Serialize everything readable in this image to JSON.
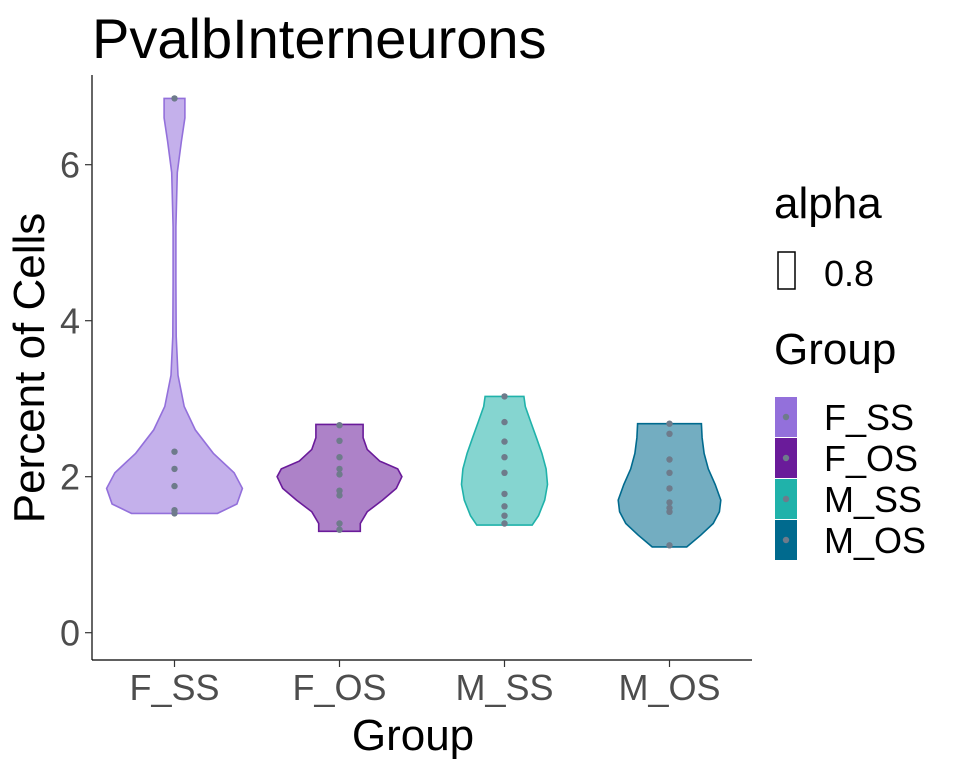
{
  "chart_data": {
    "type": "violin",
    "title": "PvalbInterneurons",
    "xlabel": "Group",
    "ylabel": "Percent of Cells",
    "categories": [
      "F_SS",
      "F_OS",
      "M_SS",
      "M_OS"
    ],
    "ylim": [
      -0.35,
      7.15
    ],
    "yticks": [
      0,
      2,
      4,
      6
    ],
    "grid": false,
    "legend_position": "right",
    "colors": {
      "F_SS": "#9370DB",
      "F_OS": "#6A1B9A",
      "M_SS": "#20B2AA",
      "M_OS": "#006A8E",
      "point": "#6E7B8B"
    },
    "series": [
      {
        "name": "F_SS",
        "points": [
          6.85,
          2.32,
          2.1,
          1.88,
          1.57,
          1.53
        ]
      },
      {
        "name": "F_OS",
        "points": [
          2.66,
          2.46,
          2.25,
          2.1,
          2.03,
          1.82,
          1.76,
          1.4,
          1.32
        ]
      },
      {
        "name": "M_SS",
        "points": [
          3.03,
          2.7,
          2.45,
          2.25,
          2.05,
          1.78,
          1.62,
          1.5,
          1.4
        ]
      },
      {
        "name": "M_OS",
        "points": [
          2.68,
          2.55,
          2.22,
          2.05,
          1.85,
          1.67,
          1.6,
          1.55,
          1.12
        ]
      }
    ],
    "violins": [
      {
        "name": "F_SS",
        "min": 1.53,
        "max": 6.85,
        "profile": [
          [
            1.53,
            0.62
          ],
          [
            1.65,
            0.9
          ],
          [
            1.85,
            0.98
          ],
          [
            2.05,
            0.86
          ],
          [
            2.3,
            0.56
          ],
          [
            2.6,
            0.3
          ],
          [
            2.9,
            0.14
          ],
          [
            3.3,
            0.05
          ],
          [
            3.8,
            0.025
          ],
          [
            4.5,
            0.02
          ],
          [
            5.2,
            0.02
          ],
          [
            5.9,
            0.04
          ],
          [
            6.3,
            0.1
          ],
          [
            6.6,
            0.15
          ],
          [
            6.85,
            0.15
          ]
        ]
      },
      {
        "name": "F_OS",
        "min": 1.3,
        "max": 2.67,
        "profile": [
          [
            1.3,
            0.3
          ],
          [
            1.4,
            0.3
          ],
          [
            1.55,
            0.4
          ],
          [
            1.7,
            0.62
          ],
          [
            1.85,
            0.82
          ],
          [
            2.0,
            0.9
          ],
          [
            2.1,
            0.84
          ],
          [
            2.2,
            0.58
          ],
          [
            2.35,
            0.4
          ],
          [
            2.5,
            0.34
          ],
          [
            2.67,
            0.34
          ]
        ]
      },
      {
        "name": "M_SS",
        "min": 1.38,
        "max": 3.03,
        "profile": [
          [
            1.38,
            0.4
          ],
          [
            1.5,
            0.49
          ],
          [
            1.7,
            0.58
          ],
          [
            1.9,
            0.62
          ],
          [
            2.1,
            0.6
          ],
          [
            2.3,
            0.54
          ],
          [
            2.5,
            0.46
          ],
          [
            2.7,
            0.38
          ],
          [
            2.9,
            0.3
          ],
          [
            3.03,
            0.28
          ]
        ]
      },
      {
        "name": "M_OS",
        "min": 1.1,
        "max": 2.68,
        "profile": [
          [
            1.1,
            0.25
          ],
          [
            1.25,
            0.45
          ],
          [
            1.4,
            0.63
          ],
          [
            1.55,
            0.72
          ],
          [
            1.7,
            0.74
          ],
          [
            1.9,
            0.66
          ],
          [
            2.1,
            0.56
          ],
          [
            2.3,
            0.5
          ],
          [
            2.5,
            0.47
          ],
          [
            2.68,
            0.46
          ]
        ]
      }
    ]
  },
  "legend": {
    "alpha_title": "alpha",
    "alpha_value": "0.8",
    "group_title": "Group"
  }
}
